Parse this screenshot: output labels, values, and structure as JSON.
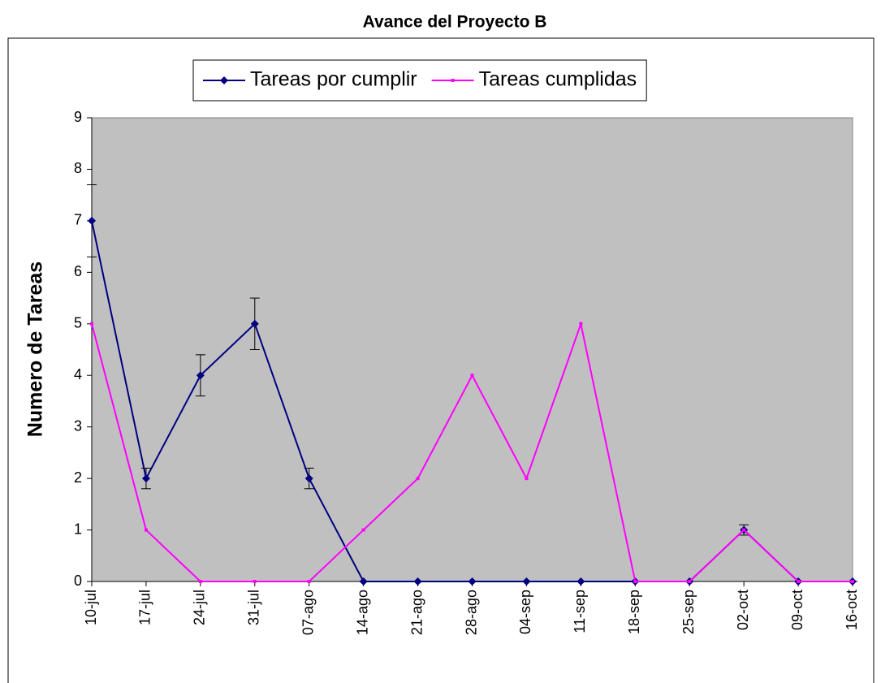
{
  "chart_data": {
    "type": "line",
    "title": "Avance del Proyecto B",
    "y_label": "Numero de Tareas",
    "categories": [
      "10-jul",
      "17-jul",
      "24-jul",
      "31-jul",
      "07-ago",
      "14-ago",
      "21-ago",
      "28-ago",
      "04-sep",
      "11-sep",
      "18-sep",
      "25-sep",
      "02-oct",
      "09-oct",
      "16-oct"
    ],
    "series": [
      {
        "name": "Tareas por cumplir",
        "color": "#000080",
        "marker": "diamond",
        "values": [
          7,
          2,
          4,
          5,
          2,
          0,
          0,
          0,
          0,
          0,
          0,
          0,
          1,
          0,
          0
        ],
        "errors": [
          0.7,
          0.2,
          0.4,
          0.5,
          0.2,
          0,
          0,
          0,
          0,
          0,
          0,
          0,
          0.1,
          0,
          0
        ]
      },
      {
        "name": "Tareas cumplidas",
        "color": "#ff00ff",
        "marker": "square",
        "values": [
          5,
          1,
          0,
          0,
          0,
          1,
          2,
          4,
          2,
          5,
          0,
          0,
          1,
          0,
          0
        ]
      }
    ],
    "ylim": [
      0,
      9
    ],
    "yticks": [
      0,
      1,
      2,
      3,
      4,
      5,
      6,
      7,
      8,
      9
    ],
    "grid": false,
    "legend": "top",
    "plot_background": "#c0c0c0"
  }
}
